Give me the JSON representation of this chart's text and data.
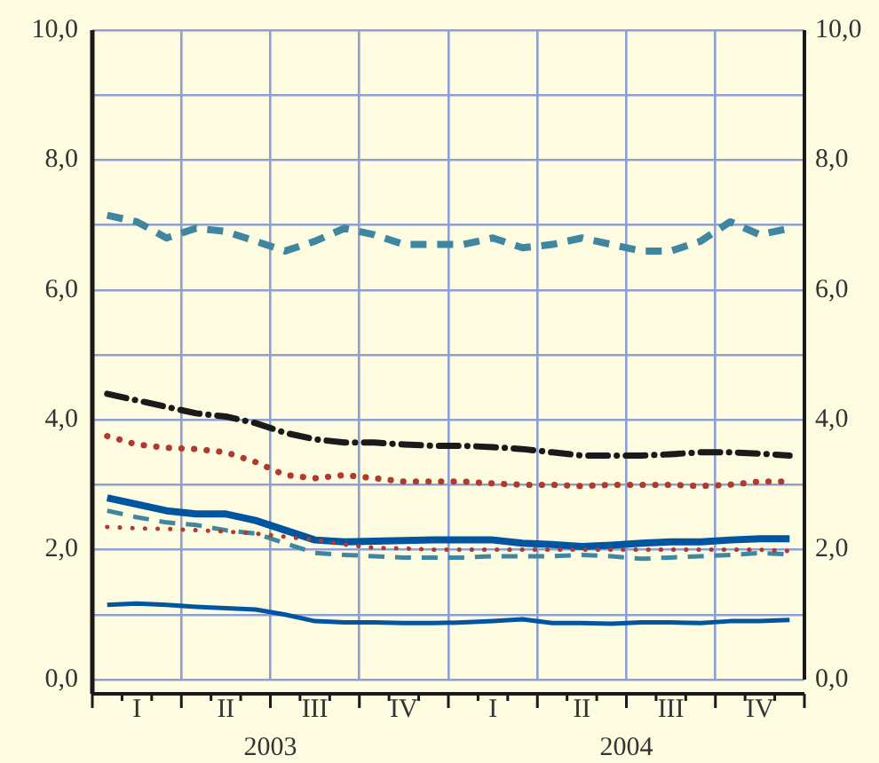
{
  "chart_data": {
    "type": "line",
    "categories": [
      null,
      "I",
      null,
      null,
      "II",
      null,
      null,
      "III",
      null,
      null,
      "IV",
      null,
      null,
      "I",
      null,
      null,
      "II",
      null,
      null,
      "III",
      null,
      null,
      "IV",
      null
    ],
    "series": [
      {
        "color": "#3f87a0",
        "line_style": "dashed",
        "values": [
          7.15,
          7.05,
          6.8,
          6.95,
          6.9,
          6.75,
          6.6,
          6.75,
          6.95,
          6.85,
          6.7,
          6.7,
          6.7,
          6.8,
          6.65,
          6.7,
          6.8,
          6.7,
          6.6,
          6.6,
          6.75,
          7.05,
          6.85,
          6.95
        ]
      },
      {
        "color": "#1a1a1a",
        "line_style": "dashdot",
        "values": [
          4.4,
          4.3,
          4.2,
          4.1,
          4.05,
          3.95,
          3.8,
          3.7,
          3.65,
          3.65,
          3.62,
          3.6,
          3.6,
          3.58,
          3.55,
          3.5,
          3.45,
          3.45,
          3.45,
          3.47,
          3.5,
          3.5,
          3.48,
          3.45
        ]
      },
      {
        "color": "#b03a2e",
        "line_style": "dotted",
        "values": [
          3.75,
          3.62,
          3.57,
          3.55,
          3.5,
          3.35,
          3.15,
          3.1,
          3.15,
          3.1,
          3.05,
          3.05,
          3.05,
          3.02,
          3.0,
          3.0,
          2.98,
          3.0,
          3.0,
          3.0,
          2.98,
          3.0,
          3.05,
          3.05
        ]
      },
      {
        "color": "#0055a0",
        "line_style": "solid",
        "values": [
          2.8,
          2.7,
          2.6,
          2.55,
          2.55,
          2.45,
          2.3,
          2.15,
          2.12,
          2.13,
          2.14,
          2.15,
          2.15,
          2.15,
          2.1,
          2.08,
          2.05,
          2.07,
          2.1,
          2.12,
          2.12,
          2.15,
          2.17,
          2.17
        ]
      },
      {
        "color": "#3f87a0",
        "line_style": "dashed",
        "values": [
          2.6,
          2.5,
          2.42,
          2.38,
          2.3,
          2.25,
          2.1,
          1.95,
          1.92,
          1.9,
          1.88,
          1.88,
          1.88,
          1.9,
          1.9,
          1.9,
          1.92,
          1.9,
          1.86,
          1.88,
          1.9,
          1.92,
          1.95,
          1.93
        ]
      },
      {
        "color": "#b03a2e",
        "line_style": "dotted",
        "values": [
          2.35,
          2.33,
          2.32,
          2.3,
          2.28,
          2.25,
          2.2,
          2.15,
          2.08,
          2.03,
          2.02,
          2.0,
          2.0,
          2.0,
          2.0,
          2.0,
          2.0,
          2.0,
          2.0,
          2.0,
          2.0,
          2.0,
          2.0,
          1.98
        ]
      },
      {
        "color": "#0055a0",
        "line_style": "solid",
        "values": [
          1.15,
          1.17,
          1.15,
          1.12,
          1.1,
          1.08,
          1.0,
          0.9,
          0.88,
          0.88,
          0.87,
          0.87,
          0.88,
          0.9,
          0.93,
          0.87,
          0.87,
          0.86,
          0.88,
          0.88,
          0.87,
          0.9,
          0.9,
          0.92
        ]
      }
    ],
    "ylim": [
      0,
      10
    ],
    "yticks": [
      {
        "value": 0,
        "label": "0,0"
      },
      {
        "value": 1,
        "label": null
      },
      {
        "value": 2,
        "label": "2,0"
      },
      {
        "value": 3,
        "label": null
      },
      {
        "value": 4,
        "label": "4,0"
      },
      {
        "value": 5,
        "label": null
      },
      {
        "value": 6,
        "label": "6,0"
      },
      {
        "value": 7,
        "label": null
      },
      {
        "value": 8,
        "label": "8,0"
      },
      {
        "value": 9,
        "label": null
      },
      {
        "value": 10,
        "label": "10,0"
      }
    ],
    "y2lim": [
      0,
      10
    ],
    "y2ticks": [
      {
        "value": 0,
        "label": "0,0"
      },
      {
        "value": 2,
        "label": "2,0"
      },
      {
        "value": 4,
        "label": "4,0"
      },
      {
        "value": 6,
        "label": "6,0"
      },
      {
        "value": 8,
        "label": "8,0"
      },
      {
        "value": 10,
        "label": "10,0"
      }
    ],
    "annotations": [
      "2003",
      "2004"
    ],
    "grid": true,
    "legend": false
  }
}
